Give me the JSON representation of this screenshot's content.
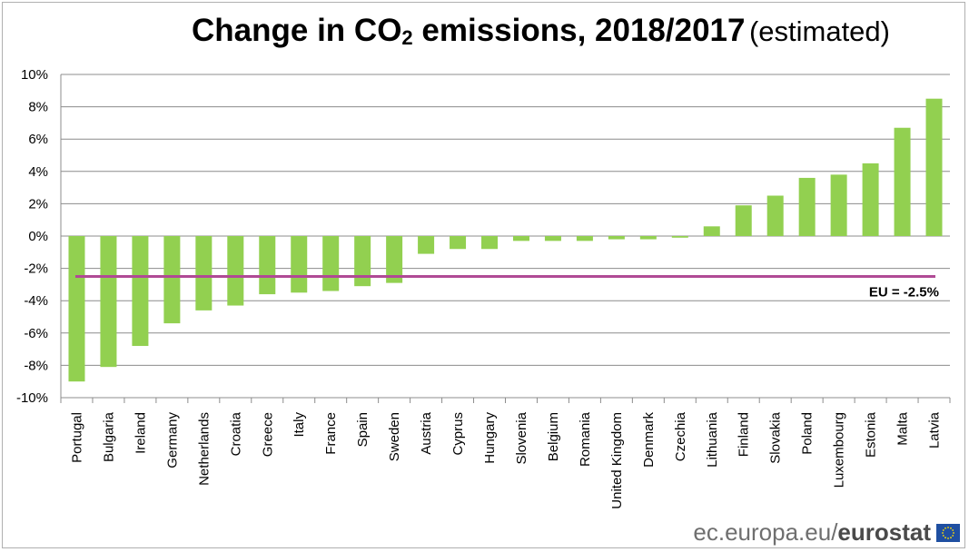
{
  "title": {
    "main": "Change in CO",
    "subscript": "2",
    "main_rest": " emissions, 2018/2017",
    "qualifier": "(estimated)"
  },
  "footer": {
    "site": "ec.europa.eu/",
    "brand": "eurostat",
    "logo_icon": "eu-flag-icon"
  },
  "chart_data": {
    "type": "bar",
    "title": "Change in CO2 emissions, 2018/2017 (estimated)",
    "categories": [
      "Portugal",
      "Bulgaria",
      "Ireland",
      "Germany",
      "Netherlands",
      "Croatia",
      "Greece",
      "Italy",
      "France",
      "Spain",
      "Sweden",
      "Austria",
      "Cyprus",
      "Hungary",
      "Slovenia",
      "Belgium",
      "Romania",
      "United Kingdom",
      "Denmark",
      "Czechia",
      "Lithuania",
      "Finland",
      "Slovakia",
      "Poland",
      "Luxembourg",
      "Estonia",
      "Malta",
      "Latvia"
    ],
    "values": [
      -9.0,
      -8.1,
      -6.8,
      -5.4,
      -4.6,
      -4.3,
      -3.6,
      -3.5,
      -3.4,
      -3.1,
      -2.9,
      -1.1,
      -0.8,
      -0.8,
      -0.3,
      -0.3,
      -0.3,
      -0.2,
      -0.2,
      -0.1,
      0.6,
      1.9,
      2.5,
      3.6,
      3.8,
      4.5,
      6.7,
      8.5
    ],
    "ylim": [
      -10,
      10
    ],
    "yticks": [
      10,
      8,
      6,
      4,
      2,
      0,
      -2,
      -4,
      -6,
      -8,
      -10
    ],
    "ytick_labels": [
      "10%",
      "8%",
      "6%",
      "4%",
      "2%",
      "0%",
      "-2%",
      "-4%",
      "-6%",
      "-8%",
      "-10%"
    ],
    "grid": true,
    "bar_color": "#92d050",
    "reference_line": {
      "value": -2.5,
      "label": "EU = -2.5%",
      "color": "#b04a95"
    }
  }
}
